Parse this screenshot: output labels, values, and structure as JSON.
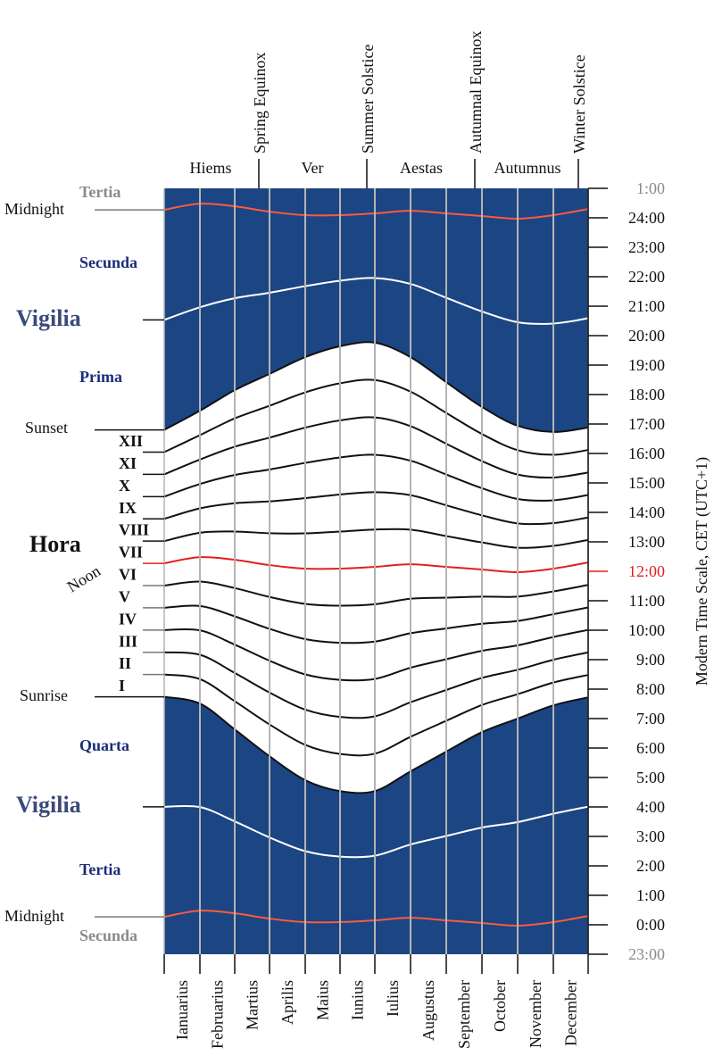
{
  "colors": {
    "night": "#1c4583",
    "grid": "#b4b4b4",
    "noon": "#e02020",
    "vigilia": "#3a4a7a",
    "watch": "#1a2d7a",
    "muted": "#8a8a8a"
  },
  "seasons": [
    "Hiems",
    "Ver",
    "Aestas",
    "Autumnus"
  ],
  "events": [
    "Spring Equinox",
    "Summer Solstice",
    "Autumnal Equinox",
    "Winter Solstice"
  ],
  "months": [
    "Ianuarius",
    "Februarius",
    "Martius",
    "Aprilis",
    "Maius",
    "Iunius",
    "Iulius",
    "Augustus",
    "September",
    "October",
    "November",
    "December"
  ],
  "left_labels": {
    "tertia_top": "Tertia",
    "midnight_top": "Midnight",
    "secunda": "Secunda",
    "vigilia_top": "Vigilia",
    "prima": "Prima",
    "sunset": "Sunset",
    "hora": "Hora",
    "noon": "Noon",
    "sunrise": "Sunrise",
    "quarta": "Quarta",
    "vigilia_bottom": "Vigilia",
    "tertia": "Tertia",
    "midnight_bottom": "Midnight",
    "secunda_bottom": "Secunda"
  },
  "hours_roman": [
    "I",
    "II",
    "III",
    "IV",
    "V",
    "VI",
    "VII",
    "VIII",
    "IX",
    "X",
    "XI",
    "XII"
  ],
  "right_axis": {
    "title": "Modern Time Scale, CET (UTC+1)",
    "ticks": [
      "23:00",
      "0:00",
      "1:00",
      "2:00",
      "3:00",
      "4:00",
      "5:00",
      "6:00",
      "7:00",
      "8:00",
      "9:00",
      "10:00",
      "11:00",
      "12:00",
      "13:00",
      "14:00",
      "15:00",
      "16:00",
      "17:00",
      "18:00",
      "19:00",
      "20:00",
      "21:00",
      "22:00",
      "23:00",
      "24:00",
      "1:00"
    ],
    "range_hours": [
      -1,
      25
    ]
  },
  "chart_data": {
    "type": "line",
    "x_points": "month boundaries (Jan 1 ... Dec 31)",
    "sunset_hours": [
      16.8,
      17.45,
      18.15,
      18.7,
      19.27,
      19.64,
      19.76,
      19.27,
      18.42,
      17.58,
      16.94,
      16.73,
      16.88
    ],
    "noon_hours": [
      12.27,
      12.48,
      12.39,
      12.21,
      12.09,
      12.09,
      12.15,
      12.24,
      12.15,
      12.06,
      11.97,
      12.09,
      12.3
    ]
  }
}
